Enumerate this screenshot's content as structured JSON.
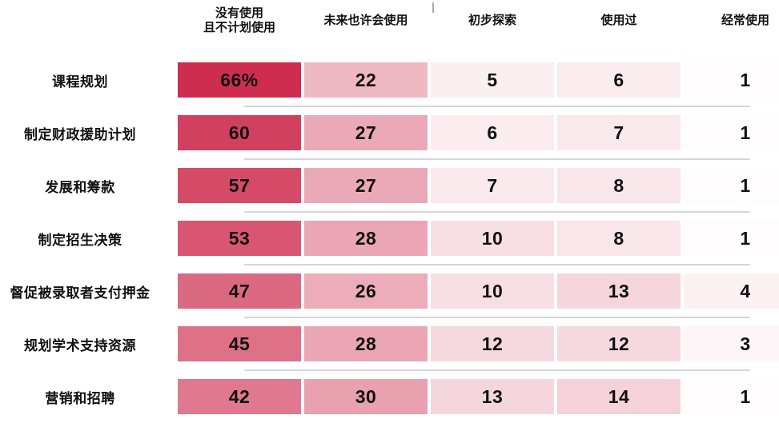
{
  "chart_data": {
    "type": "heatmap",
    "title": "",
    "legend_position": "none",
    "grid": "row-separators-only",
    "columns": [
      "没有使用\n且不计划使用",
      "未来也许会使用",
      "初步探索",
      "使用过",
      "经常使用"
    ],
    "rows": [
      {
        "label": "课程规划",
        "values": [
          66,
          22,
          5,
          6,
          1
        ],
        "display": [
          "66%",
          "22",
          "5",
          "6",
          "1"
        ]
      },
      {
        "label": "制定财政援助计划",
        "values": [
          60,
          27,
          6,
          7,
          1
        ],
        "display": [
          "60",
          "27",
          "6",
          "7",
          "1"
        ]
      },
      {
        "label": "发展和筹款",
        "values": [
          57,
          27,
          7,
          8,
          1
        ],
        "display": [
          "57",
          "27",
          "7",
          "8",
          "1"
        ]
      },
      {
        "label": "制定招生决策",
        "values": [
          53,
          28,
          10,
          8,
          1
        ],
        "display": [
          "53",
          "28",
          "10",
          "8",
          "1"
        ]
      },
      {
        "label": "督促被录取者支付押金",
        "values": [
          47,
          26,
          10,
          13,
          4
        ],
        "display": [
          "47",
          "26",
          "10",
          "13",
          "4"
        ]
      },
      {
        "label": "规划学术支持资源",
        "values": [
          45,
          28,
          12,
          12,
          3
        ],
        "display": [
          "45",
          "28",
          "12",
          "12",
          "3"
        ]
      },
      {
        "label": "营销和招聘",
        "values": [
          42,
          30,
          13,
          14,
          1
        ],
        "display": [
          "42",
          "30",
          "13",
          "14",
          "1"
        ]
      }
    ],
    "color_scale": {
      "min_color": "#ffffff",
      "max_color": "#ce2d4f",
      "scale_max": 66
    },
    "text_color": "#111111",
    "separator_color": "#d6d6d6",
    "tick_color": "#ababab",
    "background_color": "#ffffff"
  }
}
